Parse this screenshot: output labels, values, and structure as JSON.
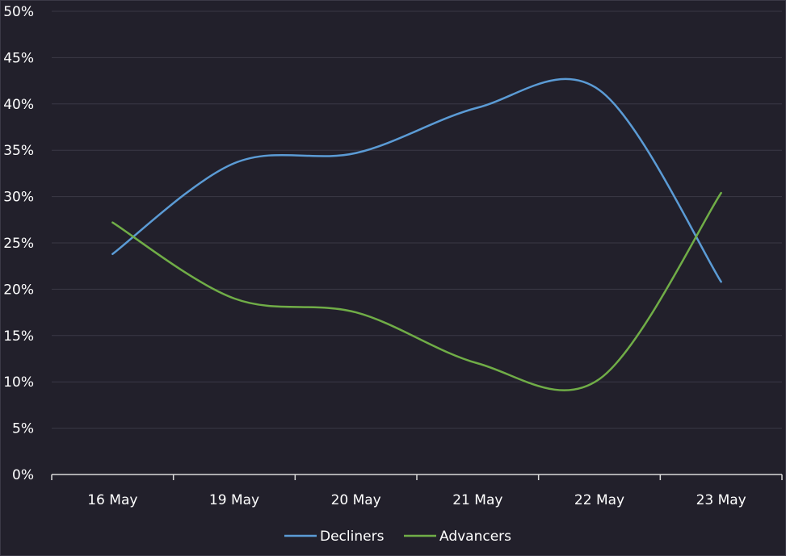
{
  "chart_data": {
    "type": "line",
    "title": "",
    "xlabel": "",
    "ylabel": "",
    "categories": [
      "16 May",
      "19 May",
      "20 May",
      "21 May",
      "22 May",
      "23 May"
    ],
    "y_ticks": [
      "0%",
      "5%",
      "10%",
      "15%",
      "20%",
      "25%",
      "30%",
      "35%",
      "40%",
      "45%",
      "50%"
    ],
    "ylim": [
      0,
      50
    ],
    "grid": true,
    "legend_position": "bottom-center",
    "series": [
      {
        "name": "Decliners",
        "color": "#5b9bd5",
        "values": [
          23.8,
          33.6,
          34.7,
          39.6,
          41.5,
          20.8
        ]
      },
      {
        "name": "Advancers",
        "color": "#70ad47",
        "values": [
          27.2,
          19.0,
          17.5,
          12.0,
          10.3,
          30.4
        ]
      }
    ]
  }
}
